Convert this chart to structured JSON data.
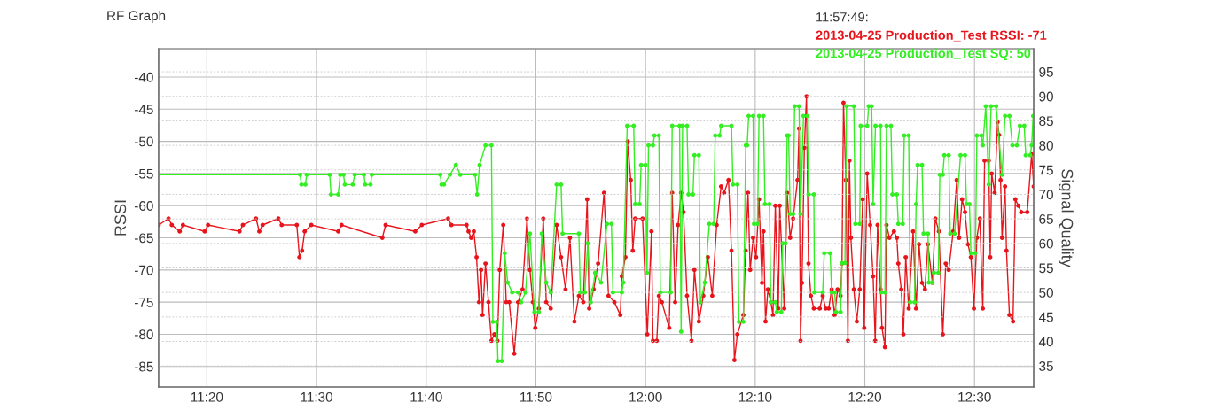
{
  "chart_data": {
    "type": "line",
    "title": "RF Graph",
    "ylabel": "RSSI",
    "y2label": "Signal Quality",
    "xlim": [
      11.26,
      12.59
    ],
    "xticks": [
      {
        "value": 11.3333,
        "label": "11:20"
      },
      {
        "value": 11.5,
        "label": "11:30"
      },
      {
        "value": 11.6667,
        "label": "11:40"
      },
      {
        "value": 11.8333,
        "label": "11:50"
      },
      {
        "value": 12.0,
        "label": "12:00"
      },
      {
        "value": 12.1667,
        "label": "12:10"
      },
      {
        "value": 12.3333,
        "label": "12:20"
      },
      {
        "value": 12.5,
        "label": "12:30"
      }
    ],
    "ylim": [
      -88.2,
      -35.6
    ],
    "yticks": [
      -85,
      -80,
      -75,
      -70,
      -65,
      -60,
      -55,
      -50,
      -45,
      -40
    ],
    "y2lim": [
      30.7,
      99.7
    ],
    "y2ticks": [
      35,
      40,
      45,
      50,
      55,
      60,
      65,
      70,
      75,
      80,
      85,
      90,
      95
    ],
    "grid": true,
    "marker": "circle",
    "line_style": "solid",
    "annotations": [
      "11:57:49:",
      "2013-04-25 Production_Test RSSI: -71",
      "2013-04-25 Production_Test SQ: 50"
    ],
    "series": [
      {
        "color": "#e8141b",
        "x": [
          11.26,
          11.275,
          11.28,
          11.292,
          11.297,
          11.33,
          11.335,
          11.383,
          11.388,
          11.408,
          11.413,
          11.418,
          11.442,
          11.447,
          11.47,
          11.474,
          11.478,
          11.482,
          11.492,
          11.533,
          11.538,
          11.6,
          11.605,
          11.65,
          11.66,
          11.7,
          11.705,
          11.728,
          11.731,
          11.735,
          11.739,
          11.7432,
          11.7469,
          11.75,
          11.7523,
          11.7568,
          11.7613,
          11.7658,
          11.7703,
          11.7748,
          11.7784,
          11.7838,
          11.7883,
          11.7928,
          11.8005,
          11.8063,
          11.8131,
          11.8198,
          11.8243,
          11.8288,
          11.8324,
          11.8378,
          11.8446,
          11.8491,
          11.8559,
          11.8649,
          11.8716,
          11.8784,
          11.8851,
          11.8919,
          11.8987,
          11.9054,
          11.9113,
          11.9144,
          11.9212,
          11.9279,
          11.9369,
          11.9437,
          11.9527,
          11.9617,
          11.964,
          11.9694,
          11.973,
          11.9775,
          11.9806,
          11.9843,
          11.9955,
          12.0027,
          12.009,
          12.0113,
          12.0171,
          12.0203,
          12.0248,
          12.036,
          12.0405,
          12.045,
          12.0495,
          12.0541,
          12.0577,
          12.0631,
          12.0698,
          12.0743,
          12.0811,
          12.0878,
          12.0946,
          12.1014,
          12.1081,
          12.1149,
          12.1194,
          12.1261,
          12.1306,
          12.1351,
          12.1396,
          12.1487,
          12.1522,
          12.1558,
          12.159,
          12.1635,
          12.168,
          12.1725,
          12.177,
          12.1793,
          12.1824,
          12.186,
          12.1905,
          12.1937,
          12.1973,
          12.2018,
          12.204,
          12.2108,
          12.2153,
          12.2198,
          12.2243,
          12.2311,
          12.2333,
          12.2356,
          12.2378,
          12.2414,
          12.2446,
          12.2477,
          12.2513,
          12.2558,
          12.2648,
          12.2693,
          12.2738,
          12.2784,
          12.2829,
          12.2874,
          12.2919,
          12.2964,
          12.2986,
          12.3009,
          12.3045,
          12.3076,
          12.3099,
          12.3121,
          12.3166,
          12.3211,
          12.3256,
          12.3301,
          12.3324,
          12.3369,
          12.3414,
          12.3459,
          12.3491,
          12.3527,
          12.3572,
          12.3594,
          12.3639,
          12.3662,
          12.3707,
          12.3775,
          12.382,
          12.3842,
          12.3887,
          12.3919,
          12.3955,
          12.4,
          12.4067,
          12.4112,
          12.4157,
          12.4202,
          12.4247,
          12.4292,
          12.436,
          12.4405,
          12.4459,
          12.4518,
          12.4563,
          12.4608,
          12.4676,
          12.473,
          12.4766,
          12.4811,
          12.4856,
          12.4901,
          12.4946,
          12.4991,
          12.5036,
          12.5081,
          12.5126,
          12.5153,
          12.5216,
          12.5239,
          12.5261,
          12.5306,
          12.5351,
          12.5374,
          12.5396,
          12.5419,
          12.5464,
          12.5486,
          12.5531,
          12.5585,
          12.5621,
          12.5666,
          12.5711,
          12.5802,
          12.5869,
          12.59
        ],
        "values": [
          -63,
          -62,
          -63,
          -64,
          -63,
          -64,
          -63,
          -64,
          -63,
          -62,
          -64,
          -63,
          -62,
          -63,
          -63,
          -68,
          -67,
          -64,
          -63,
          -64,
          -63,
          -65,
          -63,
          -64,
          -63,
          -62,
          -63,
          -63,
          -64,
          -65,
          -64,
          -68,
          -75,
          -70,
          -77,
          -69,
          -75,
          -81,
          -80,
          -81,
          -70,
          -63,
          -75,
          -75,
          -83,
          -75,
          -73,
          -62,
          -70,
          -75,
          -79,
          -76,
          -62,
          -75,
          -76,
          -63,
          -68,
          -73,
          -65,
          -78,
          -74,
          -75,
          -59,
          -76,
          -73,
          -69,
          -58,
          -74,
          -75,
          -77,
          -71,
          -68,
          -50,
          -56,
          -67,
          -62,
          -62,
          -80,
          -64,
          -81,
          -81,
          -74,
          -75,
          -79,
          -58,
          -75,
          -63,
          -58,
          -61,
          -74,
          -81,
          -70,
          -78,
          -74,
          -68,
          -74,
          -63,
          -57,
          -58,
          -56,
          -67,
          -84,
          -80,
          -77,
          -67,
          -58,
          -70,
          -65,
          -68,
          -59,
          -72,
          -64,
          -78,
          -73,
          -75,
          -77,
          -60,
          -76,
          -60,
          -76,
          -58,
          -65,
          -62,
          -56,
          -48,
          -81,
          -72,
          -51,
          -43,
          -69,
          -74,
          -76,
          -76,
          -74,
          -76,
          -76,
          -73,
          -77,
          -73,
          -74,
          -69,
          -44,
          -56,
          -81,
          -53,
          -65,
          -73,
          -78,
          -73,
          -59,
          -79,
          -55,
          -63,
          -71,
          -81,
          -63,
          -73,
          -79,
          -82,
          -63,
          -65,
          -64,
          -65,
          -69,
          -73,
          -80,
          -68,
          -76,
          -64,
          -76,
          -66,
          -72,
          -73,
          -66,
          -72,
          -62,
          -64,
          -80,
          -69,
          -70,
          -64,
          -56,
          -65,
          -59,
          -61,
          -66,
          -68,
          -76,
          -65,
          -62,
          -76,
          -53,
          -53,
          -68,
          -55,
          -58,
          -47,
          -49,
          -56,
          -65,
          -57,
          -67,
          -77,
          -78,
          -59,
          -60,
          -61,
          -61,
          -52,
          -57
        ]
      },
      {
        "color": "#33ee22",
        "axis": "y2",
        "x": [
          11.26,
          11.475,
          11.477,
          11.483,
          11.485,
          11.52,
          11.522,
          11.533,
          11.536,
          11.541,
          11.543,
          11.555,
          11.558,
          11.572,
          11.574,
          11.582,
          11.584,
          11.688,
          11.69,
          11.6937,
          11.7027,
          11.7117,
          11.7185,
          11.741,
          11.7441,
          11.7478,
          11.7568,
          11.7658,
          11.768,
          11.7739,
          11.7757,
          11.7815,
          11.786,
          11.7905,
          11.7973,
          11.8063,
          11.8108,
          11.8176,
          11.8243,
          11.8311,
          11.8378,
          11.8423,
          11.8491,
          11.8559,
          11.8649,
          11.8716,
          11.8739,
          11.8987,
          11.9009,
          11.9077,
          11.9122,
          11.9167,
          11.9234,
          11.9324,
          11.9414,
          11.9482,
          11.9505,
          11.964,
          11.9662,
          11.9721,
          11.982,
          11.9843,
          11.991,
          11.9933,
          12.0,
          12.0023,
          12.0045,
          12.0113,
          12.0135,
          12.0203,
          12.0225,
          12.0383,
          12.0405,
          12.0518,
          12.0541,
          12.0563,
          12.0631,
          12.0653,
          12.0721,
          12.0743,
          12.0811,
          12.0833,
          12.0901,
          12.0969,
          12.1036,
          12.1059,
          12.1126,
          12.1149,
          12.1306,
          12.1329,
          12.1396,
          12.1419,
          12.1487,
          12.1523,
          12.1545,
          12.1567,
          12.1635,
          12.1648,
          12.1702,
          12.1725,
          12.1793,
          12.1815,
          12.1883,
          12.1905,
          12.1973,
          12.1995,
          12.2063,
          12.2085,
          12.213,
          12.2153,
          12.2175,
          12.2198,
          12.2243,
          12.2266,
          12.2333,
          12.2356,
          12.2401,
          12.2459,
          12.2477,
          12.2558,
          12.2567,
          12.2693,
          12.2716,
          12.2806,
          12.2829,
          12.2874,
          12.2896,
          12.2964,
          12.2986,
          12.3031,
          12.3054,
          12.3166,
          12.3189,
          12.3256,
          12.327,
          12.3369,
          12.3392,
          12.3437,
          12.3459,
          12.3495,
          12.3572,
          12.3585,
          12.3639,
          12.3662,
          12.373,
          12.3752,
          12.382,
          12.3842,
          12.391,
          12.3932,
          12.4,
          12.4022,
          12.409,
          12.4112,
          12.4135,
          12.4203,
          12.4225,
          12.4293,
          12.4306,
          12.436,
          12.4383,
          12.445,
          12.4473,
          12.4518,
          12.4541,
          12.4608,
          12.4631,
          12.4698,
          12.4788,
          12.4856,
          12.4878,
          12.4923,
          12.4946,
          12.5014,
          12.5036,
          12.5104,
          12.5126,
          12.5171,
          12.5216,
          12.5252,
          12.5329,
          12.5419,
          12.5464,
          12.5531,
          12.5576,
          12.5644,
          12.5689,
          12.5756,
          12.5779,
          12.5846,
          12.5869,
          12.5891
        ],
        "values": [
          74,
          74,
          72,
          72,
          74,
          74,
          70,
          70,
          74,
          74,
          72,
          72,
          74,
          74,
          72,
          72,
          74,
          74,
          72,
          72,
          74,
          76,
          74,
          74,
          70,
          76,
          80,
          80,
          44,
          44,
          36,
          36,
          58,
          52,
          50,
          50,
          48,
          50,
          62,
          46,
          46,
          62,
          52,
          50,
          72,
          72,
          62,
          62,
          50,
          50,
          60,
          48,
          54,
          52,
          64,
          64,
          50,
          50,
          52,
          84,
          84,
          68,
          68,
          76,
          76,
          54,
          80,
          80,
          82,
          82,
          50,
          50,
          84,
          84,
          42,
          84,
          84,
          70,
          70,
          78,
          78,
          48,
          52,
          64,
          64,
          82,
          82,
          84,
          84,
          72,
          72,
          44,
          44,
          80,
          80,
          86,
          86,
          64,
          64,
          86,
          86,
          68,
          68,
          48,
          48,
          46,
          46,
          60,
          60,
          82,
          82,
          66,
          66,
          88,
          88,
          66,
          86,
          86,
          70,
          70,
          50,
          50,
          58,
          58,
          50,
          50,
          46,
          46,
          56,
          56,
          88,
          88,
          64,
          64,
          84,
          84,
          88,
          88,
          68,
          84,
          84,
          50,
          50,
          84,
          84,
          70,
          70,
          64,
          64,
          82,
          82,
          48,
          48,
          68,
          76,
          76,
          62,
          62,
          52,
          52,
          54,
          54,
          74,
          74,
          78,
          78,
          62,
          62,
          78,
          78,
          68,
          68,
          58,
          58,
          82,
          82,
          80,
          88,
          72,
          88,
          88,
          74,
          86,
          86,
          80,
          80,
          84,
          84,
          78,
          78,
          80,
          86
        ]
      }
    ]
  }
}
